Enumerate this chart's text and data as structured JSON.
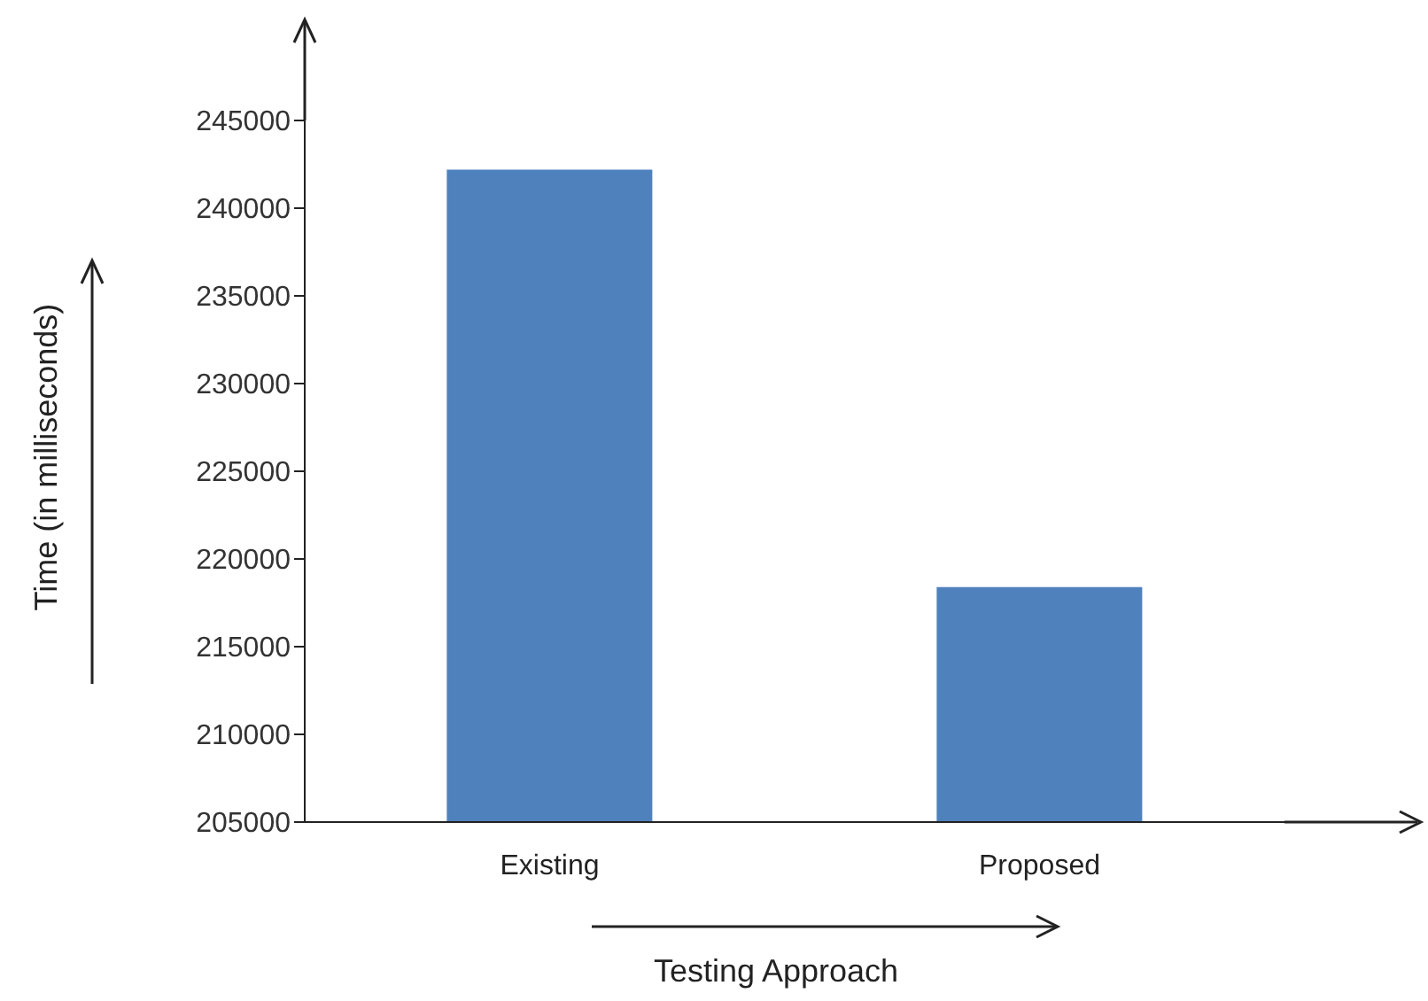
{
  "chart_data": {
    "type": "bar",
    "xlabel": "Testing Approach",
    "ylabel": "Time (in milliseconds)",
    "categories": [
      "Existing",
      "Proposed"
    ],
    "values": [
      242200,
      218400
    ],
    "color": "#4f81bd",
    "ylim": [
      205000,
      245000
    ],
    "yticks": [
      205000,
      210000,
      215000,
      220000,
      225000,
      230000,
      235000,
      240000,
      245000
    ]
  }
}
